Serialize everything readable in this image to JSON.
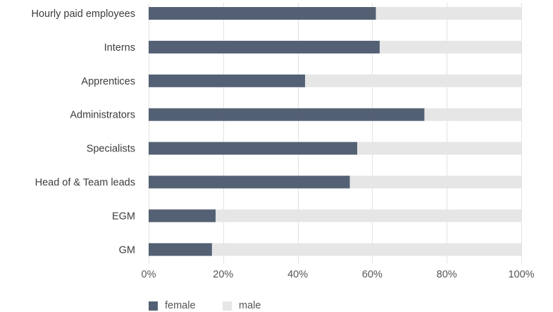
{
  "chart_data": {
    "type": "bar",
    "orientation": "horizontal",
    "stacked": true,
    "categories": [
      "Hourly paid employees",
      "Interns",
      "Apprentices",
      "Administrators",
      "Specialists",
      "Head of & Team leads",
      "EGM",
      "GM"
    ],
    "series": [
      {
        "name": "female",
        "color": "#546174",
        "values": [
          61,
          62,
          42,
          74,
          56,
          54,
          18,
          17
        ]
      },
      {
        "name": "male",
        "color": "#e6e6e6",
        "values": [
          39,
          38,
          58,
          26,
          44,
          46,
          82,
          83
        ]
      }
    ],
    "xlim": [
      0,
      100
    ],
    "xticks": [
      0,
      20,
      40,
      60,
      80,
      100
    ],
    "xtick_labels": [
      "0%",
      "20%",
      "40%",
      "60%",
      "80%",
      "100%"
    ],
    "xlabel": "",
    "ylabel": "",
    "title": "",
    "grid": true,
    "legend_position": "bottom-left"
  }
}
